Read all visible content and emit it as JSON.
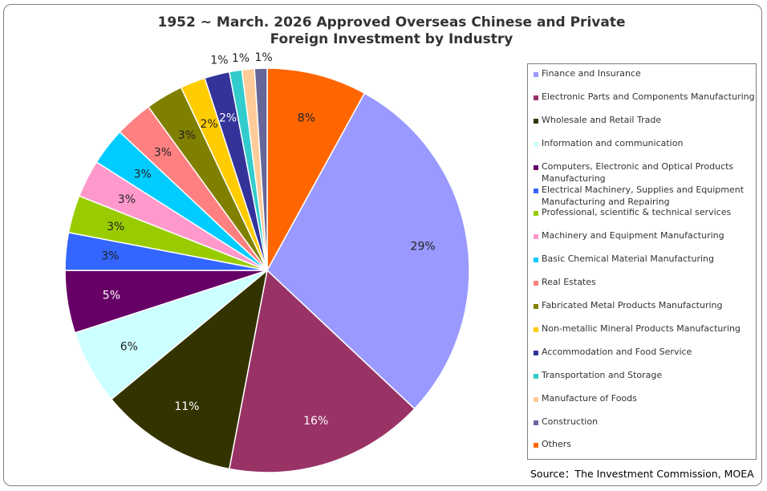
{
  "chart_data": {
    "type": "pie",
    "title_line1": "1952 ~  March. 2026 Approved Overseas Chinese and Private",
    "title_line2": "Foreign Investment by Industry",
    "legend_position": "right",
    "slices": [
      {
        "name": "Finance and Insurance",
        "value": 29,
        "label": "29%",
        "color": "#9999FF"
      },
      {
        "name": "Electronic Parts and Components Manufacturing",
        "value": 16,
        "label": "16%",
        "color": "#993366"
      },
      {
        "name": "Wholesale and Retail Trade",
        "value": 11,
        "label": "11%",
        "color": "#333300"
      },
      {
        "name": "Information and communication",
        "value": 6,
        "label": "6%",
        "color": "#CCFFFF"
      },
      {
        "name": "Computers, Electronic and Optical Products Manufacturing",
        "value": 5,
        "label": "5%",
        "color": "#660066"
      },
      {
        "name": "Electrical Machinery, Supplies and Equipment Manufacturing and Repairing",
        "value": 3,
        "label": "3%",
        "color": "#3366FF"
      },
      {
        "name": "Professional, scientific & technical services",
        "value": 3,
        "label": "3%",
        "color": "#99CC00"
      },
      {
        "name": "Machinery and Equipment Manufacturing",
        "value": 3,
        "label": "3%",
        "color": "#FF99CC"
      },
      {
        "name": "Basic Chemical Material Manufacturing",
        "value": 3,
        "label": "3%",
        "color": "#00CCFF"
      },
      {
        "name": "Real Estates",
        "value": 3,
        "label": "3%",
        "color": "#FF8080"
      },
      {
        "name": "Fabricated Metal Products Manufacturing",
        "value": 3,
        "label": "3%",
        "color": "#808000"
      },
      {
        "name": "Non-metallic Mineral Products Manufacturing",
        "value": 2,
        "label": "2%",
        "color": "#FFCC00"
      },
      {
        "name": "Accommodation and Food Service",
        "value": 2,
        "label": "2%",
        "color": "#333399"
      },
      {
        "name": "Transportation and Storage",
        "value": 1,
        "label": "1%",
        "color": "#33CCCC"
      },
      {
        "name": "Manufacture of Foods",
        "value": 1,
        "label": "1%",
        "color": "#FFCC99"
      },
      {
        "name": "Construction",
        "value": 1,
        "label": "1%",
        "color": "#666699"
      },
      {
        "name": "Others",
        "value": 8,
        "label": "8%",
        "color": "#FF6600"
      }
    ]
  },
  "source_text": "Source：The Investment Commission, MOEA"
}
